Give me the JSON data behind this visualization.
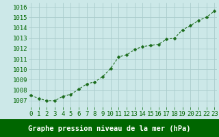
{
  "x": [
    0,
    1,
    2,
    3,
    4,
    5,
    6,
    7,
    8,
    9,
    10,
    11,
    12,
    13,
    14,
    15,
    16,
    17,
    18,
    19,
    20,
    21,
    22,
    23
  ],
  "y": [
    1007.5,
    1007.2,
    1007.0,
    1007.0,
    1007.4,
    1007.6,
    1008.1,
    1008.6,
    1008.8,
    1009.3,
    1010.1,
    1011.2,
    1011.4,
    1011.9,
    1012.2,
    1012.3,
    1012.4,
    1012.9,
    1013.0,
    1013.8,
    1014.2,
    1014.7,
    1015.0,
    1015.6
  ],
  "line_color": "#1a6b1a",
  "marker": "D",
  "marker_size": 2.5,
  "bg_color": "#cce8e8",
  "plot_bg_color": "#cce8e8",
  "grid_color": "#aacccc",
  "bottom_bar_color": "#006600",
  "xlabel": "Graphe pression niveau de la mer (hPa)",
  "xlabel_color": "#ffffff",
  "xlabel_fontsize": 7.5,
  "tick_color": "#006600",
  "ytick_color": "#006600",
  "tick_fontsize": 6.5,
  "ylim": [
    1006.4,
    1016.4
  ],
  "yticks": [
    1007,
    1008,
    1009,
    1010,
    1011,
    1012,
    1013,
    1014,
    1015,
    1016
  ],
  "xticks": [
    0,
    1,
    2,
    3,
    4,
    5,
    6,
    7,
    8,
    9,
    10,
    11,
    12,
    13,
    14,
    15,
    16,
    17,
    18,
    19,
    20,
    21,
    22,
    23
  ],
  "xlim": [
    -0.3,
    23.3
  ]
}
